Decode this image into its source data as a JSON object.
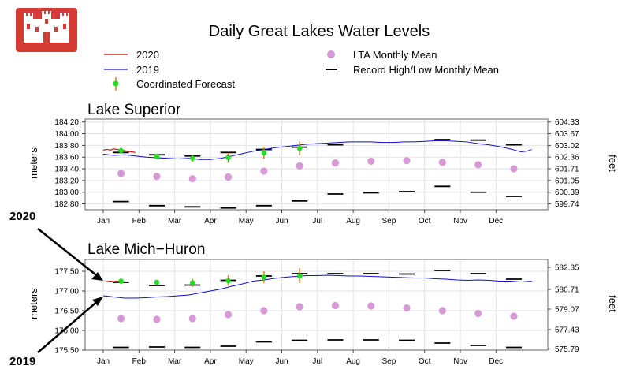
{
  "chart_data": {
    "type": "line",
    "title": "Daily Great Lakes Water Levels",
    "legend": [
      {
        "label": "2020",
        "symbol": "line",
        "color": "#d00000"
      },
      {
        "label": "2019",
        "symbol": "line",
        "color": "#1010c8"
      },
      {
        "label": "Coordinated Forecast",
        "symbol": "point-errorbar",
        "color": "#22dd22"
      },
      {
        "label": "LTA Monthly Mean",
        "symbol": "point",
        "color": "#d79ad7"
      },
      {
        "label": "Record High/Low Monthly Mean",
        "symbol": "dash",
        "color": "#000000"
      }
    ],
    "months": [
      "Jan",
      "Feb",
      "Mar",
      "Apr",
      "May",
      "Jun",
      "Jul",
      "Aug",
      "Sep",
      "Oct",
      "Nov",
      "Dec"
    ],
    "ylabel_left": "meters",
    "ylabel_right": "feet",
    "annotations": [
      "2020",
      "2019"
    ],
    "panels": [
      {
        "name": "Lake Superior",
        "ylim": [
          182.7,
          184.25
        ],
        "yticks": [
          "184.20",
          "184.00",
          "183.80",
          "183.60",
          "183.40",
          "183.20",
          "183.00",
          "182.80"
        ],
        "right_ticks": [
          {
            "m": 184.2,
            "label": "604.33"
          },
          {
            "m": 184.0,
            "label": "603.67"
          },
          {
            "m": 183.8,
            "label": "603.02"
          },
          {
            "m": 183.6,
            "label": "602.36"
          },
          {
            "m": 183.4,
            "label": "601.71"
          },
          {
            "m": 183.2,
            "label": "601.05"
          },
          {
            "m": 183.0,
            "label": "600.39"
          },
          {
            "m": 182.8,
            "label": "599.74"
          }
        ],
        "lta": [
          183.32,
          183.27,
          183.23,
          183.26,
          183.36,
          183.45,
          183.5,
          183.53,
          183.54,
          183.51,
          183.47,
          183.4
        ],
        "record_high": [
          183.68,
          183.64,
          183.62,
          183.68,
          183.73,
          183.77,
          183.81,
          null,
          null,
          183.9,
          183.89,
          183.81
        ],
        "record_low": [
          182.84,
          182.77,
          182.75,
          182.73,
          182.77,
          182.85,
          182.97,
          182.99,
          183.01,
          183.1,
          183.0,
          182.93
        ],
        "forecast": [
          {
            "month": 0,
            "value": 183.71,
            "lo": 183.66,
            "hi": 183.76
          },
          {
            "month": 1,
            "value": 183.61,
            "lo": 183.57,
            "hi": 183.66
          },
          {
            "month": 2,
            "value": 183.58,
            "lo": 183.52,
            "hi": 183.63
          },
          {
            "month": 3,
            "value": 183.59,
            "lo": 183.5,
            "hi": 183.67
          },
          {
            "month": 4,
            "value": 183.67,
            "lo": 183.57,
            "hi": 183.77
          },
          {
            "month": 5,
            "value": 183.75,
            "lo": 183.63,
            "hi": 183.87
          }
        ],
        "series_2020": [
          [
            0,
            183.72
          ],
          [
            0.1,
            183.73
          ],
          [
            0.2,
            183.72
          ],
          [
            0.3,
            183.74
          ],
          [
            0.4,
            183.73
          ],
          [
            0.5,
            183.72
          ],
          [
            0.6,
            183.71
          ],
          [
            0.7,
            183.7
          ],
          [
            0.8,
            183.69
          ],
          [
            0.9,
            183.68
          ]
        ],
        "series_2019": [
          [
            0,
            183.65
          ],
          [
            0.3,
            183.63
          ],
          [
            0.6,
            183.64
          ],
          [
            0.9,
            183.62
          ],
          [
            1.2,
            183.6
          ],
          [
            1.5,
            183.59
          ],
          [
            1.8,
            183.58
          ],
          [
            2.1,
            183.57
          ],
          [
            2.4,
            183.58
          ],
          [
            2.7,
            183.56
          ],
          [
            3.0,
            183.56
          ],
          [
            3.3,
            183.58
          ],
          [
            3.6,
            183.62
          ],
          [
            3.9,
            183.66
          ],
          [
            4.2,
            183.7
          ],
          [
            4.5,
            183.73
          ],
          [
            4.8,
            183.76
          ],
          [
            5.1,
            183.78
          ],
          [
            5.4,
            183.8
          ],
          [
            5.7,
            183.82
          ],
          [
            6.0,
            183.83
          ],
          [
            6.3,
            183.84
          ],
          [
            6.6,
            183.85
          ],
          [
            6.9,
            183.86
          ],
          [
            7.2,
            183.86
          ],
          [
            7.5,
            183.86
          ],
          [
            7.8,
            183.85
          ],
          [
            8.1,
            183.85
          ],
          [
            8.4,
            183.86
          ],
          [
            8.7,
            183.86
          ],
          [
            9.0,
            183.87
          ],
          [
            9.3,
            183.88
          ],
          [
            9.6,
            183.88
          ],
          [
            9.9,
            183.87
          ],
          [
            10.2,
            183.86
          ],
          [
            10.5,
            183.83
          ],
          [
            10.8,
            183.81
          ],
          [
            11.1,
            183.78
          ],
          [
            11.4,
            183.74
          ],
          [
            11.7,
            183.69
          ],
          [
            11.85,
            183.7
          ],
          [
            12.0,
            183.73
          ]
        ]
      },
      {
        "name": "Lake Mich−Huron",
        "ylim": [
          175.5,
          177.8
        ],
        "yticks": [
          "177.50",
          "177.00",
          "176.50",
          "176.00",
          "175.50"
        ],
        "right_ticks": [
          {
            "m": 177.6,
            "label": "582.35"
          },
          {
            "m": 177.04,
            "label": "580.71"
          },
          {
            "m": 176.54,
            "label": "579.07"
          },
          {
            "m": 176.02,
            "label": "577.43"
          },
          {
            "m": 175.53,
            "label": "575.79"
          }
        ],
        "lta": [
          176.3,
          176.28,
          176.3,
          176.4,
          176.5,
          176.6,
          176.63,
          176.62,
          176.57,
          176.5,
          176.43,
          176.36
        ],
        "record_high": [
          177.22,
          177.14,
          177.15,
          177.27,
          177.38,
          177.44,
          177.44,
          177.44,
          177.43,
          177.52,
          177.44,
          177.3
        ],
        "record_low": [
          175.57,
          175.58,
          175.57,
          175.6,
          175.71,
          175.75,
          175.76,
          175.76,
          175.75,
          175.68,
          175.62,
          175.57
        ],
        "forecast": [
          {
            "month": 0,
            "value": 177.25,
            "lo": 177.18,
            "hi": 177.31
          },
          {
            "month": 1,
            "value": 177.22,
            "lo": 177.17,
            "hi": 177.27
          },
          {
            "month": 2,
            "value": 177.21,
            "lo": 177.1,
            "hi": 177.31
          },
          {
            "month": 3,
            "value": 177.26,
            "lo": 177.13,
            "hi": 177.4
          },
          {
            "month": 4,
            "value": 177.35,
            "lo": 177.2,
            "hi": 177.5
          },
          {
            "month": 5,
            "value": 177.38,
            "lo": 177.2,
            "hi": 177.58
          }
        ],
        "series_2020": [
          [
            0,
            177.23
          ],
          [
            0.1,
            177.24
          ],
          [
            0.2,
            177.25
          ],
          [
            0.3,
            177.24
          ],
          [
            0.4,
            177.25
          ],
          [
            0.5,
            177.24
          ],
          [
            0.6,
            177.23
          ]
        ],
        "series_2019": [
          [
            0,
            176.88
          ],
          [
            0.3,
            176.85
          ],
          [
            0.6,
            176.82
          ],
          [
            0.9,
            176.82
          ],
          [
            1.2,
            176.83
          ],
          [
            1.5,
            176.85
          ],
          [
            1.8,
            176.86
          ],
          [
            2.1,
            176.88
          ],
          [
            2.4,
            176.9
          ],
          [
            2.7,
            176.95
          ],
          [
            3.0,
            177.0
          ],
          [
            3.3,
            177.05
          ],
          [
            3.6,
            177.12
          ],
          [
            3.9,
            177.18
          ],
          [
            4.2,
            177.25
          ],
          [
            4.5,
            177.28
          ],
          [
            4.8,
            177.32
          ],
          [
            5.1,
            177.35
          ],
          [
            5.4,
            177.37
          ],
          [
            5.7,
            177.39
          ],
          [
            6.0,
            177.39
          ],
          [
            6.3,
            177.4
          ],
          [
            6.6,
            177.39
          ],
          [
            6.9,
            177.38
          ],
          [
            7.2,
            177.38
          ],
          [
            7.5,
            177.37
          ],
          [
            7.8,
            177.36
          ],
          [
            8.1,
            177.35
          ],
          [
            8.4,
            177.34
          ],
          [
            8.7,
            177.33
          ],
          [
            9.0,
            177.33
          ],
          [
            9.3,
            177.31
          ],
          [
            9.6,
            177.3
          ],
          [
            9.9,
            177.28
          ],
          [
            10.2,
            177.27
          ],
          [
            10.5,
            177.28
          ],
          [
            10.8,
            177.27
          ],
          [
            11.1,
            177.25
          ],
          [
            11.4,
            177.25
          ],
          [
            11.7,
            177.23
          ],
          [
            12.0,
            177.25
          ]
        ]
      }
    ]
  },
  "colors": {
    "logo": "#d43b32",
    "series_2020": "#d00000",
    "series_2019": "#1010c8",
    "forecast": "#22dd22",
    "forecast_bar": "#d08020",
    "lta": "#d79ad7",
    "record": "#000000",
    "grid": "#e2e2e2"
  },
  "logo": {
    "icon": "castle-icon"
  }
}
